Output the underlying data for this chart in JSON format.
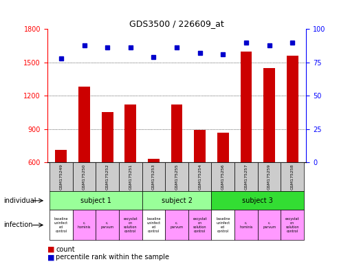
{
  "title": "GDS3500 / 226609_at",
  "samples": [
    "GSM175249",
    "GSM175250",
    "GSM175252",
    "GSM175251",
    "GSM175253",
    "GSM175255",
    "GSM175254",
    "GSM175256",
    "GSM175257",
    "GSM175259",
    "GSM175258"
  ],
  "counts": [
    710,
    1280,
    1050,
    1120,
    635,
    1120,
    890,
    870,
    1600,
    1450,
    1560
  ],
  "percentile_ranks": [
    78,
    88,
    86,
    86,
    79,
    86,
    82,
    81,
    90,
    88,
    90
  ],
  "ylim_left": [
    600,
    1800
  ],
  "ylim_right": [
    0,
    100
  ],
  "yticks_left": [
    600,
    900,
    1200,
    1500,
    1800
  ],
  "yticks_right": [
    0,
    25,
    50,
    75,
    100
  ],
  "bar_color": "#cc0000",
  "dot_color": "#0000cc",
  "subjects": [
    {
      "label": "subject 1",
      "start": 0,
      "end": 3
    },
    {
      "label": "subject 2",
      "start": 4,
      "end": 6
    },
    {
      "label": "subject 3",
      "start": 7,
      "end": 10
    }
  ],
  "subject_colors": [
    "#99ff99",
    "#99ff99",
    "#33dd33"
  ],
  "infection_colors": [
    "#ffffff",
    "#ff99ff",
    "#ff99ff",
    "#ff99ff",
    "#ffffff",
    "#ff99ff",
    "#ff99ff",
    "#ffffff",
    "#ff99ff",
    "#ff99ff",
    "#ff99ff"
  ],
  "sample_bg_color": "#cccccc"
}
